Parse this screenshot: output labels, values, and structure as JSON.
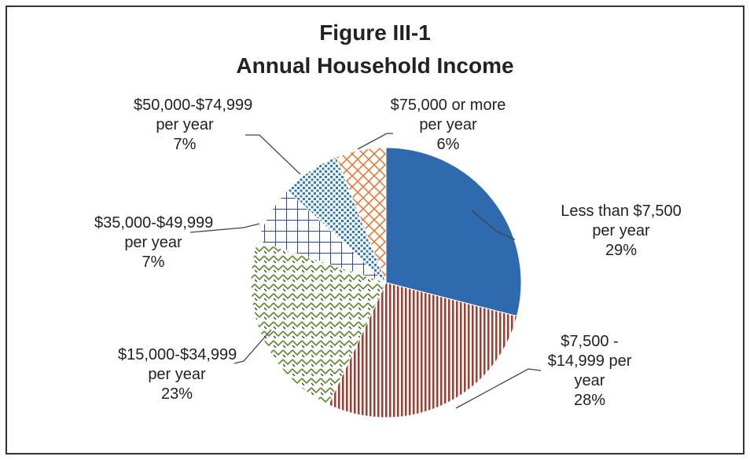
{
  "chart_data": {
    "type": "pie",
    "title": "Figure III-1",
    "subtitle": "Annual Household Income",
    "categories": [
      "Less than $7,500 per year",
      "$7,500 - $14,999 per year",
      "$15,000-$34,999 per year",
      "$35,000-$49,999 per year",
      "$50,000-$74,999 per year",
      "$75,000 or more per year"
    ],
    "values": [
      29,
      28,
      23,
      7,
      7,
      6
    ],
    "value_labels": [
      "29%",
      "28%",
      "23%",
      "7%",
      "7%",
      "6%"
    ],
    "colors": [
      "#2e6aad",
      "#a83a2c",
      "#5a8a2a",
      "#2a4aa0",
      "#2e7ab8",
      "#e8702a"
    ],
    "patterns": [
      "solid",
      "vertical",
      "zigzag",
      "grid",
      "dots",
      "crosshatch"
    ]
  }
}
